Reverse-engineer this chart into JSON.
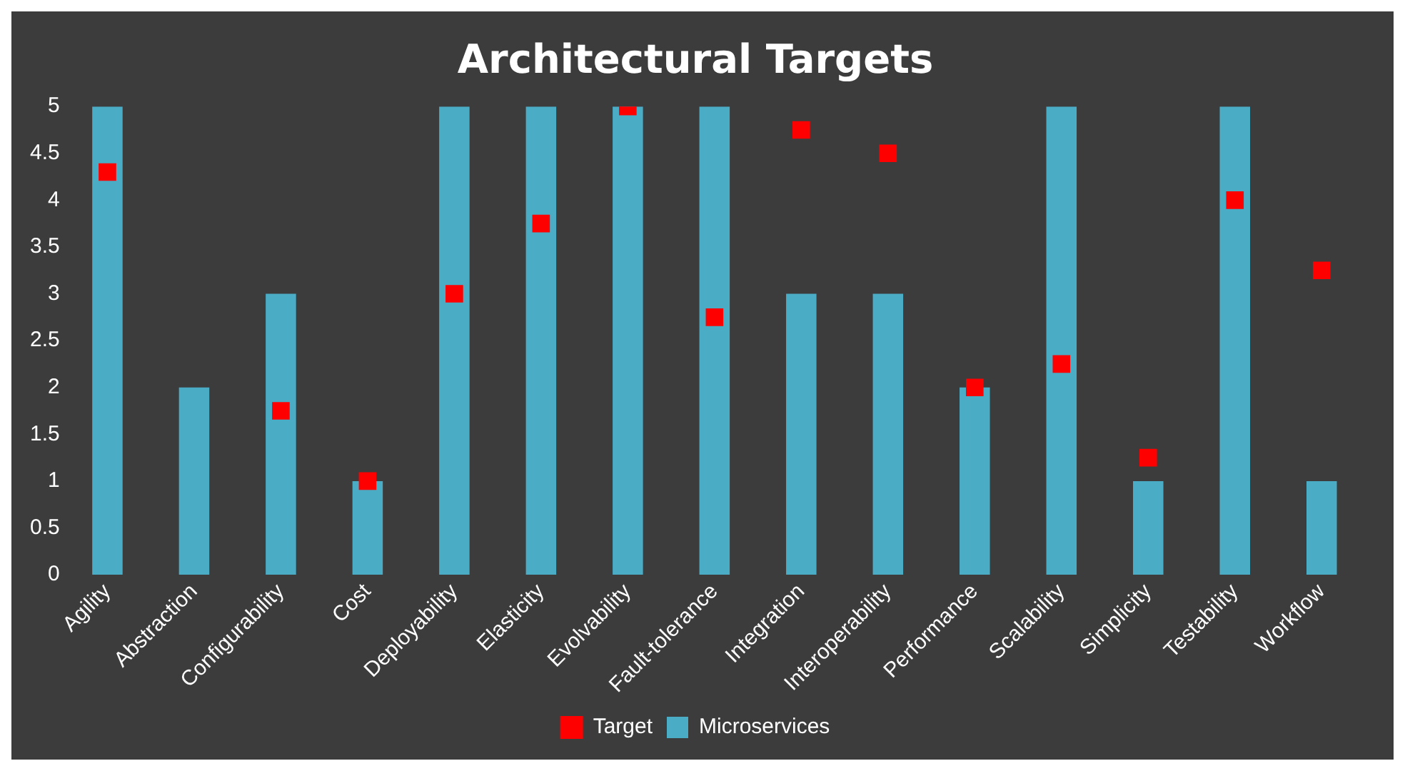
{
  "chart_data": {
    "type": "bar",
    "title": "Architectural Targets",
    "categories": [
      "Agility",
      "Abstraction",
      "Configurability",
      "Cost",
      "Deployability",
      "Elasticity",
      "Evolvability",
      "Fault-tolerance",
      "Integration",
      "Interoperability",
      "Performance",
      "Scalability",
      "Simplicity",
      "Testability",
      "Workflow"
    ],
    "series": [
      {
        "name": "Microservices",
        "color": "#4bacc6",
        "values": [
          5,
          2,
          3,
          1,
          5,
          5,
          5,
          5,
          3,
          3,
          2,
          5,
          1,
          5,
          1
        ]
      },
      {
        "name": "Target",
        "type": "scatter",
        "color": "#ff0000",
        "x": [
          "Agility",
          "Abstraction",
          "Configurability",
          "Cost",
          "Deployability",
          "Elasticity",
          "Evolvability",
          "Fault-tolerance",
          "Integration",
          "Interoperability",
          "Performance",
          "Scalability",
          "Simplicity",
          "Testability",
          "Workflow"
        ],
        "values": [
          4.3,
          null,
          1.75,
          1,
          3,
          3.75,
          5,
          2.75,
          4.75,
          4.5,
          2,
          2.25,
          1.25,
          4,
          3.25
        ]
      }
    ],
    "ylim": [
      0,
      5
    ],
    "yticks": [
      0,
      0.5,
      1,
      1.5,
      2,
      2.5,
      3,
      3.5,
      4,
      4.5,
      5
    ],
    "grid": false,
    "marker": "square",
    "legend": "bottom"
  }
}
